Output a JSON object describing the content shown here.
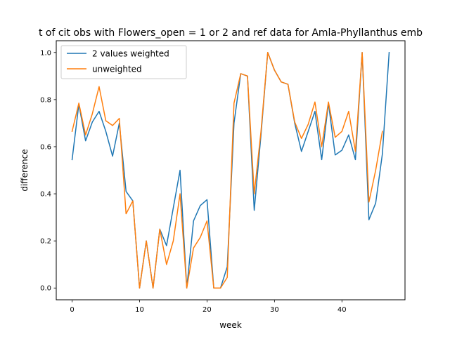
{
  "chart_data": {
    "type": "line",
    "title": "t of cit obs with Flowers_open = 1 or 2 and ref data for Amla-Phyllanthus emb",
    "xlabel": "week",
    "ylabel": "difference",
    "xlim": [
      -2.35,
      49.35
    ],
    "ylim": [
      -0.05,
      1.05
    ],
    "xticks": [
      0,
      10,
      20,
      30,
      40
    ],
    "yticks": [
      0.0,
      0.2,
      0.4,
      0.6,
      0.8,
      1.0
    ],
    "xtick_labels": [
      "0",
      "10",
      "20",
      "30",
      "40"
    ],
    "ytick_labels": [
      "0.0",
      "0.2",
      "0.4",
      "0.6",
      "0.8",
      "1.0"
    ],
    "grid": false,
    "legend_position": "upper-left",
    "series": [
      {
        "name": "2 values weighted",
        "color": "#1f77b4",
        "x": [
          0,
          1,
          2,
          3,
          4,
          5,
          6,
          7,
          8,
          9,
          10,
          11,
          12,
          13,
          14,
          15,
          16,
          17,
          18,
          19,
          20,
          21,
          22,
          23,
          24,
          25,
          26,
          27,
          28,
          29,
          30,
          31,
          32,
          33,
          34,
          35,
          36,
          37,
          38,
          39,
          40,
          41,
          42,
          43,
          44,
          45,
          46,
          47
        ],
        "y": [
          0.545,
          0.78,
          0.625,
          0.705,
          0.75,
          0.665,
          0.56,
          0.7,
          0.41,
          0.37,
          0.0,
          0.2,
          0.0,
          0.25,
          0.18,
          0.34,
          0.5,
          0.0,
          0.285,
          0.35,
          0.375,
          0.0,
          0.0,
          0.09,
          0.7,
          0.91,
          0.9,
          0.33,
          0.65,
          1.0,
          0.925,
          0.875,
          0.865,
          0.7,
          0.58,
          0.665,
          0.75,
          0.545,
          0.785,
          0.565,
          0.585,
          0.65,
          0.545,
          1.0,
          0.29,
          0.36,
          0.57,
          1.0
        ]
      },
      {
        "name": "unweighted",
        "color": "#ff7f0e",
        "x": [
          0,
          1,
          2,
          3,
          4,
          5,
          6,
          7,
          8,
          9,
          10,
          11,
          12,
          13,
          14,
          15,
          16,
          17,
          18,
          19,
          20,
          21,
          22,
          23,
          24,
          25,
          26,
          27,
          28,
          29,
          30,
          31,
          32,
          33,
          34,
          35,
          36,
          37,
          38,
          39,
          40,
          41,
          42,
          43,
          44,
          45,
          46
        ],
        "y": [
          0.665,
          0.785,
          0.65,
          0.74,
          0.855,
          0.71,
          0.69,
          0.72,
          0.315,
          0.37,
          0.0,
          0.2,
          0.0,
          0.25,
          0.1,
          0.2,
          0.4,
          0.0,
          0.17,
          0.215,
          0.285,
          0.0,
          0.0,
          0.045,
          0.785,
          0.91,
          0.9,
          0.4,
          0.665,
          1.0,
          0.925,
          0.875,
          0.865,
          0.705,
          0.635,
          0.695,
          0.79,
          0.6,
          0.79,
          0.64,
          0.665,
          0.75,
          0.58,
          1.0,
          0.365,
          0.5,
          0.665
        ]
      }
    ]
  }
}
